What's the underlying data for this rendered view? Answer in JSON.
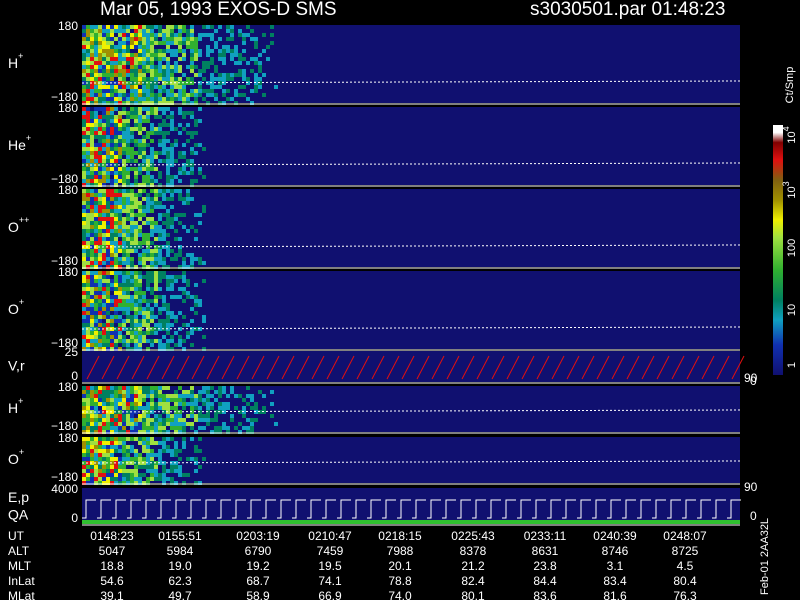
{
  "header": {
    "title": "Mar 05, 1993   EXOS-D SMS",
    "file": "s3030501.par  01:48:23"
  },
  "panels": [
    {
      "label": "H",
      "charge": "+",
      "ticks": [
        "180",
        "−180"
      ]
    },
    {
      "label": "He",
      "charge": "+",
      "ticks": [
        "180",
        "−180"
      ]
    },
    {
      "label": "O",
      "charge": "++",
      "ticks": [
        "180",
        "−180"
      ]
    },
    {
      "label": "O",
      "charge": "+",
      "ticks": [
        "180",
        "−180"
      ]
    },
    {
      "label": "V,r",
      "ticks": [
        "25",
        "0"
      ],
      "right_ticks": [
        "90",
        "0"
      ]
    },
    {
      "label": "H",
      "charge": "+",
      "ticks": [
        "180",
        "−180"
      ]
    },
    {
      "label": "O",
      "charge": "+",
      "ticks": [
        "180",
        "−180"
      ]
    },
    {
      "label": "E,p",
      "sublabel": "QA",
      "ticks": [
        "4000",
        "0"
      ],
      "right_ticks": [
        "90",
        "0"
      ]
    }
  ],
  "colorbar": {
    "unit": "Ct/Smp",
    "labels": [
      {
        "base": "10",
        "exp": "4"
      },
      {
        "base": "10",
        "exp": "3"
      },
      {
        "text": "100"
      },
      {
        "text": "10"
      },
      {
        "text": "1"
      }
    ]
  },
  "footer": {
    "rows": [
      [
        "UT",
        "0148:23",
        "0155:51",
        "0203:19",
        "0210:47",
        "0218:15",
        "0225:43",
        "0233:11",
        "0240:39",
        "0248:07"
      ],
      [
        "ALT",
        "5047",
        "5984",
        "6790",
        "7459",
        "7988",
        "8378",
        "8631",
        "8746",
        "8725"
      ],
      [
        "MLT",
        "18.8",
        "19.0",
        "19.2",
        "19.5",
        "20.1",
        "21.2",
        "23.8",
        "3.1",
        "4.5"
      ],
      [
        "InLat",
        "54.6",
        "62.3",
        "68.7",
        "74.1",
        "78.8",
        "82.4",
        "84.4",
        "83.4",
        "80.4"
      ],
      [
        "MLat",
        "39.1",
        "49.7",
        "58.9",
        "66.9",
        "74.0",
        "80.1",
        "83.6",
        "81.6",
        "76.3"
      ]
    ],
    "note": "Feb-01 2AA32L"
  }
}
